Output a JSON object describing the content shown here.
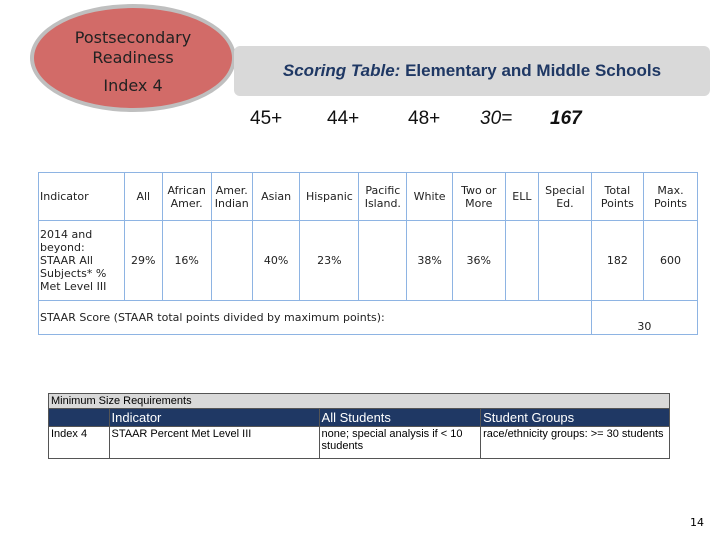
{
  "header": {
    "badge": [
      "Postsecondary",
      "Readiness",
      "Index 4"
    ],
    "title_lead": "Scoring Table:",
    "title_rest": "Elementary and Middle Schools"
  },
  "callouts": [
    "45+",
    "44+",
    "48+",
    "30=",
    "167"
  ],
  "table": {
    "headers": [
      "Indicator",
      "All",
      "African Amer.",
      "Amer. Indian",
      "Asian",
      "Hispanic",
      "Pacific Island.",
      "White",
      "Two or More",
      "ELL",
      "Special Ed.",
      "Total Points",
      "Max. Points"
    ],
    "row": [
      "2014 and beyond: STAAR All Subjects* % Met Level III",
      "29%",
      "16%",
      null,
      "40%",
      "23%",
      null,
      "38%",
      "36%",
      null,
      null,
      "182",
      "600"
    ],
    "score_label": "STAAR Score (STAAR total points divided by maximum points):",
    "score": "30"
  },
  "min_table": {
    "title": "Minimum Size Requirements",
    "headers": [
      null,
      "Indicator",
      "All Students",
      "Student Groups"
    ],
    "row": [
      "Index 4",
      "STAAR Percent Met Level III",
      "none; special analysis if < 10 students",
      "race/ethnicity groups: >= 30 students"
    ]
  },
  "page_number": "14"
}
